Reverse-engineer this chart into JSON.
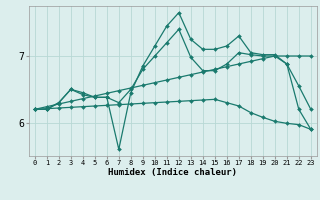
{
  "x": [
    0,
    1,
    2,
    3,
    4,
    5,
    6,
    7,
    8,
    9,
    10,
    11,
    12,
    13,
    14,
    15,
    16,
    17,
    18,
    19,
    20,
    21,
    22,
    23
  ],
  "line_straight_top": [
    6.2,
    6.24,
    6.28,
    6.32,
    6.36,
    6.4,
    6.44,
    6.48,
    6.52,
    6.56,
    6.6,
    6.64,
    6.68,
    6.72,
    6.76,
    6.8,
    6.84,
    6.88,
    6.92,
    6.96,
    7.0,
    7.0,
    7.0,
    7.0
  ],
  "line_straight_bot": [
    6.2,
    6.21,
    6.22,
    6.23,
    6.24,
    6.25,
    6.26,
    6.27,
    6.28,
    6.29,
    6.3,
    6.31,
    6.32,
    6.33,
    6.34,
    6.35,
    6.3,
    6.25,
    6.15,
    6.08,
    6.02,
    5.99,
    5.97,
    5.9
  ],
  "line_peak": [
    6.2,
    6.2,
    6.3,
    6.5,
    6.45,
    6.38,
    6.38,
    5.6,
    6.45,
    6.85,
    7.15,
    7.45,
    7.65,
    7.25,
    7.1,
    7.1,
    7.15,
    7.3,
    7.05,
    7.02,
    7.02,
    6.88,
    6.2,
    5.9
  ],
  "line_mid": [
    6.2,
    6.2,
    6.3,
    6.5,
    6.42,
    6.38,
    6.38,
    6.3,
    6.5,
    6.8,
    7.0,
    7.2,
    7.4,
    6.98,
    6.78,
    6.78,
    6.88,
    7.05,
    7.02,
    7.0,
    7.0,
    6.88,
    6.55,
    6.2
  ],
  "color": "#1a7a6e",
  "bg_color": "#dceeed",
  "grid_color": "#b8d8d5",
  "xlabel": "Humidex (Indice chaleur)",
  "ylim": [
    5.5,
    7.75
  ],
  "xlim": [
    -0.5,
    23.5
  ],
  "yticks": [
    6,
    7
  ],
  "xticks": [
    0,
    1,
    2,
    3,
    4,
    5,
    6,
    7,
    8,
    9,
    10,
    11,
    12,
    13,
    14,
    15,
    16,
    17,
    18,
    19,
    20,
    21,
    22,
    23
  ],
  "markersize": 2.0,
  "linewidth": 0.9,
  "xlabel_fontsize": 6.5,
  "tick_fontsize_x": 5.0,
  "tick_fontsize_y": 7.0
}
